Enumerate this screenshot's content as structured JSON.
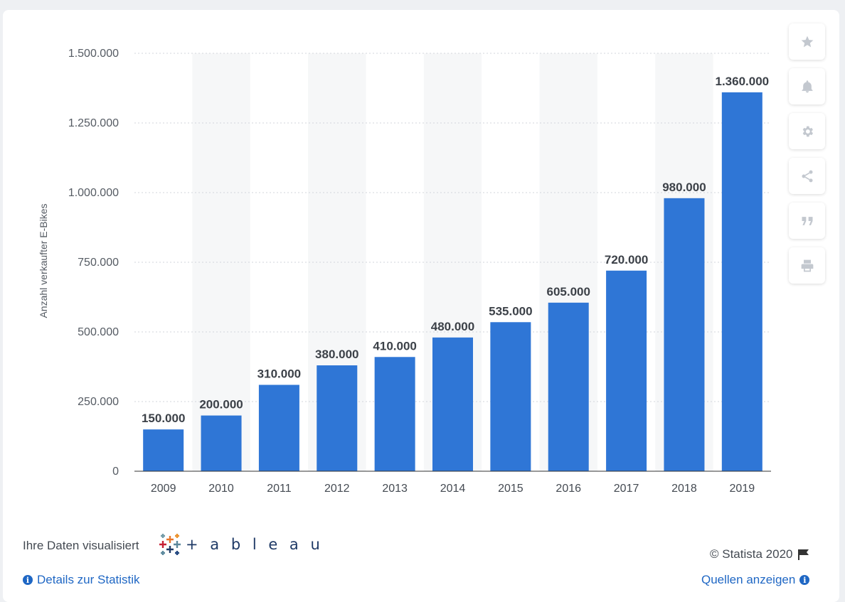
{
  "chart_data": {
    "type": "bar",
    "title": "",
    "xlabel": "",
    "ylabel": "Anzahl verkaufter E-Bikes",
    "categories": [
      "2009",
      "2010",
      "2011",
      "2012",
      "2013",
      "2014",
      "2015",
      "2016",
      "2017",
      "2018",
      "2019"
    ],
    "values": [
      150000,
      200000,
      310000,
      380000,
      410000,
      480000,
      535000,
      605000,
      720000,
      980000,
      1360000
    ],
    "value_labels": [
      "150.000",
      "200.000",
      "310.000",
      "380.000",
      "410.000",
      "480.000",
      "535.000",
      "605.000",
      "720.000",
      "980.000",
      "1.360.000"
    ],
    "yticks": [
      0,
      250000,
      500000,
      750000,
      1000000,
      1250000,
      1500000
    ],
    "ytick_labels": [
      "0",
      "250.000",
      "500.000",
      "750.000",
      "1.000.000",
      "1.250.000",
      "1.500.000"
    ],
    "ylim": [
      0,
      1500000
    ],
    "grid": true,
    "colors": {
      "bar": "#2f76d6",
      "alt_band": "#f6f7f8",
      "grid": "#d2d6db",
      "axis": "#333333"
    }
  },
  "toolbar": {
    "icons": [
      "star-icon",
      "bell-icon",
      "gear-icon",
      "share-icon",
      "quote-icon",
      "print-icon"
    ]
  },
  "footer": {
    "visualized_text": "Ihre Daten visualisiert",
    "tableau_word": "+ a b l e a u",
    "copyright": "© Statista 2020",
    "details_link": "Details zur Statistik",
    "sources_link": "Quellen anzeigen"
  }
}
